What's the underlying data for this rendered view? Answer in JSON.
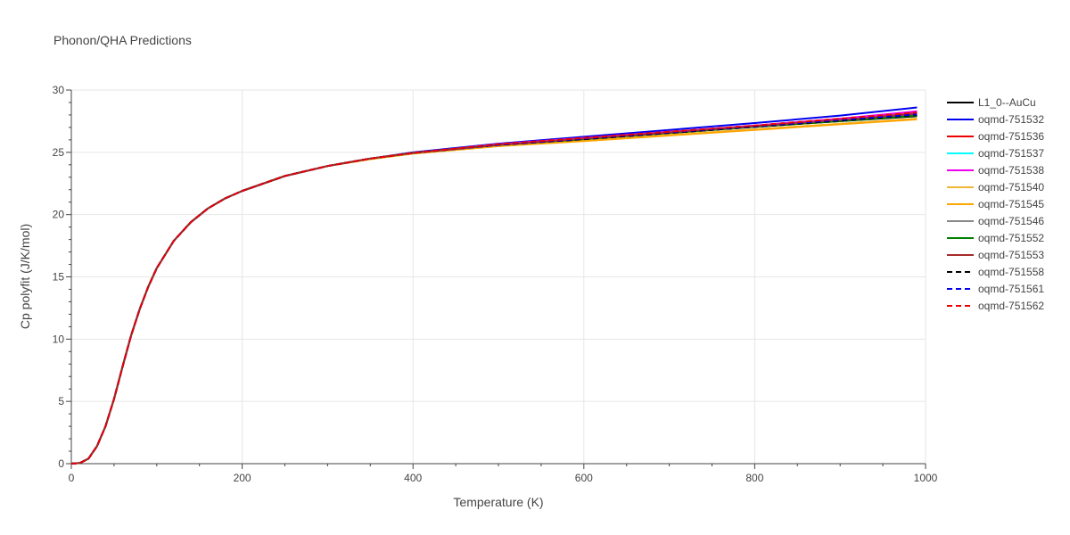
{
  "chart_data": {
    "type": "line",
    "title": "Phonon/QHA Predictions",
    "xlabel": "Temperature (K)",
    "ylabel": "Cp polyfit (J/K/mol)",
    "xlim": [
      0,
      1000
    ],
    "ylim": [
      0,
      30
    ],
    "xticks": [
      0,
      200,
      400,
      600,
      800,
      1000
    ],
    "yticks": [
      0,
      5,
      10,
      15,
      20,
      25,
      30
    ],
    "grid": true,
    "legend_position": "right",
    "x": [
      0,
      10,
      20,
      30,
      40,
      50,
      60,
      70,
      80,
      90,
      100,
      120,
      140,
      160,
      180,
      200,
      250,
      300,
      350,
      400,
      500,
      600,
      700,
      800,
      900,
      990
    ],
    "series": [
      {
        "name": "L1_0--AuCu",
        "color": "#000000",
        "dash": false,
        "values": [
          0,
          0.05,
          0.4,
          1.4,
          3.0,
          5.2,
          7.8,
          10.3,
          12.4,
          14.2,
          15.7,
          17.9,
          19.4,
          20.5,
          21.3,
          21.9,
          23.1,
          23.9,
          24.5,
          24.95,
          25.6,
          26.05,
          26.55,
          27.05,
          27.5,
          27.9
        ]
      },
      {
        "name": "oqmd-751532",
        "color": "#0000ee",
        "dash": false,
        "values": [
          0,
          0.05,
          0.4,
          1.4,
          3.0,
          5.2,
          7.8,
          10.3,
          12.4,
          14.2,
          15.7,
          17.9,
          19.4,
          20.5,
          21.3,
          21.9,
          23.1,
          23.9,
          24.5,
          25.0,
          25.7,
          26.25,
          26.8,
          27.35,
          27.95,
          28.6
        ]
      },
      {
        "name": "oqmd-751536",
        "color": "#ee0000",
        "dash": false,
        "values": [
          0,
          0.05,
          0.4,
          1.4,
          3.0,
          5.2,
          7.8,
          10.3,
          12.4,
          14.2,
          15.7,
          17.9,
          19.4,
          20.5,
          21.3,
          21.9,
          23.1,
          23.9,
          24.5,
          24.95,
          25.65,
          26.15,
          26.65,
          27.15,
          27.7,
          28.25
        ]
      },
      {
        "name": "oqmd-751537",
        "color": "#00ffff",
        "dash": false,
        "values": [
          0,
          0.05,
          0.4,
          1.4,
          3.0,
          5.2,
          7.8,
          10.3,
          12.4,
          14.2,
          15.7,
          17.9,
          19.4,
          20.5,
          21.3,
          21.9,
          23.1,
          23.9,
          24.5,
          24.95,
          25.6,
          26.1,
          26.6,
          27.1,
          27.6,
          28.1
        ]
      },
      {
        "name": "oqmd-751538",
        "color": "#ee00ee",
        "dash": false,
        "values": [
          0,
          0.05,
          0.4,
          1.4,
          3.0,
          5.2,
          7.8,
          10.3,
          12.4,
          14.2,
          15.7,
          17.9,
          19.4,
          20.5,
          21.3,
          21.9,
          23.1,
          23.9,
          24.5,
          24.95,
          25.65,
          26.15,
          26.65,
          27.15,
          27.7,
          28.3
        ]
      },
      {
        "name": "oqmd-751540",
        "color": "#f2b637",
        "dash": false,
        "values": [
          0,
          0.05,
          0.4,
          1.4,
          3.0,
          5.2,
          7.8,
          10.3,
          12.4,
          14.2,
          15.7,
          17.9,
          19.4,
          20.5,
          21.3,
          21.9,
          23.1,
          23.9,
          24.45,
          24.9,
          25.5,
          25.95,
          26.4,
          26.85,
          27.3,
          27.7
        ]
      },
      {
        "name": "oqmd-751545",
        "color": "#ffa500",
        "dash": false,
        "values": [
          0,
          0.05,
          0.4,
          1.4,
          3.0,
          5.2,
          7.8,
          10.3,
          12.4,
          14.2,
          15.7,
          17.9,
          19.4,
          20.5,
          21.3,
          21.9,
          23.1,
          23.9,
          24.45,
          24.9,
          25.5,
          25.9,
          26.35,
          26.8,
          27.25,
          27.65
        ]
      },
      {
        "name": "oqmd-751546",
        "color": "#888888",
        "dash": false,
        "values": [
          0,
          0.05,
          0.4,
          1.4,
          3.0,
          5.2,
          7.8,
          10.3,
          12.4,
          14.2,
          15.7,
          17.9,
          19.4,
          20.5,
          21.3,
          21.9,
          23.1,
          23.9,
          24.5,
          24.95,
          25.6,
          26.1,
          26.6,
          27.1,
          27.6,
          28.05
        ]
      },
      {
        "name": "oqmd-751552",
        "color": "#008000",
        "dash": false,
        "values": [
          0,
          0.05,
          0.4,
          1.4,
          3.0,
          5.2,
          7.8,
          10.3,
          12.4,
          14.2,
          15.7,
          17.9,
          19.4,
          20.5,
          21.3,
          21.9,
          23.1,
          23.9,
          24.5,
          24.95,
          25.6,
          26.05,
          26.55,
          27.05,
          27.5,
          27.95
        ]
      },
      {
        "name": "oqmd-751553",
        "color": "#a52a2a",
        "dash": false,
        "values": [
          0,
          0.05,
          0.4,
          1.4,
          3.0,
          5.2,
          7.8,
          10.3,
          12.4,
          14.2,
          15.7,
          17.9,
          19.4,
          20.5,
          21.3,
          21.9,
          23.1,
          23.9,
          24.5,
          24.95,
          25.6,
          26.1,
          26.6,
          27.1,
          27.6,
          28.1
        ]
      },
      {
        "name": "oqmd-751558",
        "color": "#000000",
        "dash": true,
        "values": [
          0,
          0.05,
          0.4,
          1.4,
          3.0,
          5.2,
          7.8,
          10.3,
          12.4,
          14.2,
          15.7,
          17.9,
          19.4,
          20.5,
          21.3,
          21.9,
          23.1,
          23.9,
          24.5,
          24.95,
          25.6,
          26.05,
          26.55,
          27.05,
          27.55,
          28.0
        ]
      },
      {
        "name": "oqmd-751561",
        "color": "#0000ee",
        "dash": true,
        "values": [
          0,
          0.05,
          0.4,
          1.4,
          3.0,
          5.2,
          7.8,
          10.3,
          12.4,
          14.2,
          15.7,
          17.9,
          19.4,
          20.5,
          21.3,
          21.9,
          23.1,
          23.9,
          24.5,
          24.95,
          25.6,
          26.1,
          26.6,
          27.1,
          27.6,
          28.05
        ]
      },
      {
        "name": "oqmd-751562",
        "color": "#ee0000",
        "dash": true,
        "values": [
          0,
          0.05,
          0.4,
          1.4,
          3.0,
          5.2,
          7.8,
          10.3,
          12.4,
          14.2,
          15.7,
          17.9,
          19.4,
          20.5,
          21.3,
          21.9,
          23.1,
          23.9,
          24.5,
          24.95,
          25.65,
          26.15,
          26.65,
          27.15,
          27.7,
          28.2
        ]
      }
    ]
  }
}
